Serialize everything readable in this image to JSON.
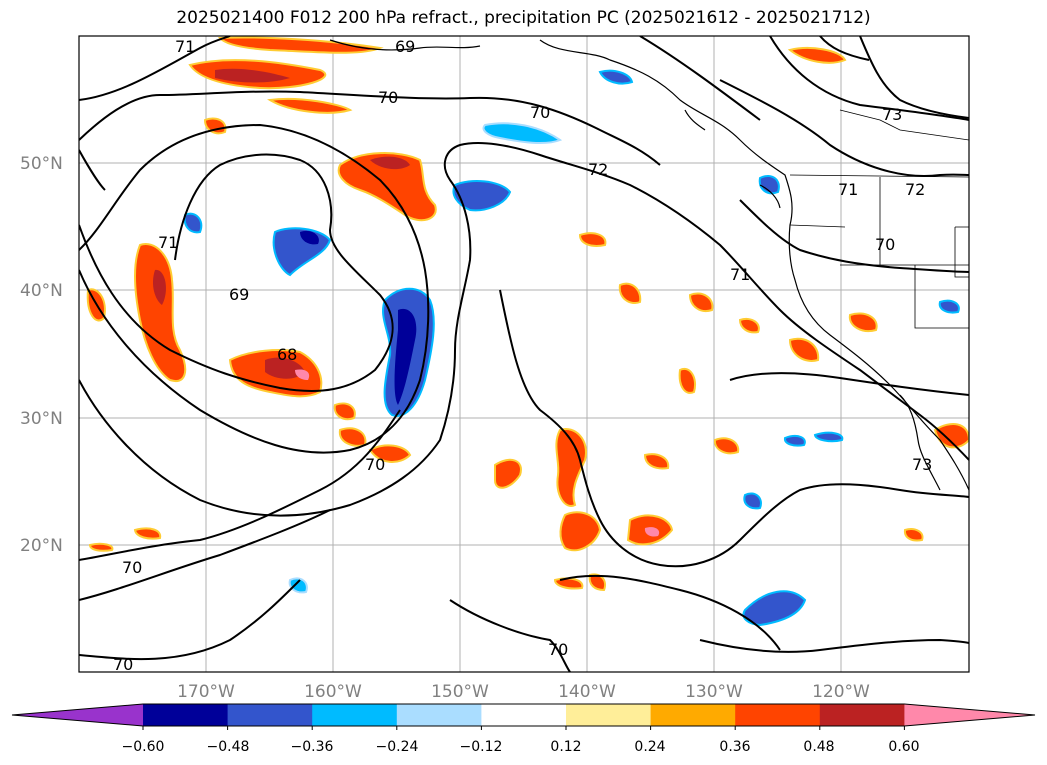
{
  "title": "2025021400 F012 200 hPa refract., precipitation PC (2025021612 - 2025021712)",
  "map": {
    "lat_labels": [
      "50°N",
      "40°N",
      "30°N",
      "20°N"
    ],
    "lon_labels": [
      "170°W",
      "160°W",
      "150°W",
      "140°W",
      "130°W",
      "120°W"
    ],
    "contour_levels": [
      "71",
      "69",
      "70",
      "70",
      "72",
      "73",
      "71",
      "72",
      "71",
      "70",
      "71",
      "69",
      "68",
      "70",
      "73",
      "70",
      "70",
      "70"
    ]
  },
  "colorbar": {
    "colors": [
      "#9933cc",
      "#000099",
      "#3355cc",
      "#00bbff",
      "#aaddff",
      "#ffffff",
      "#ffee99",
      "#ffaa00",
      "#ff4400",
      "#bb2222",
      "#ff88aa"
    ],
    "tick_labels": [
      "−0.60",
      "−0.48",
      "−0.36",
      "−0.24",
      "−0.12",
      "0.12",
      "0.24",
      "0.36",
      "0.48",
      "0.60"
    ]
  },
  "colors": {
    "grid": "#b0b0b0",
    "axis_label": "#808080",
    "contour": "#000000"
  }
}
